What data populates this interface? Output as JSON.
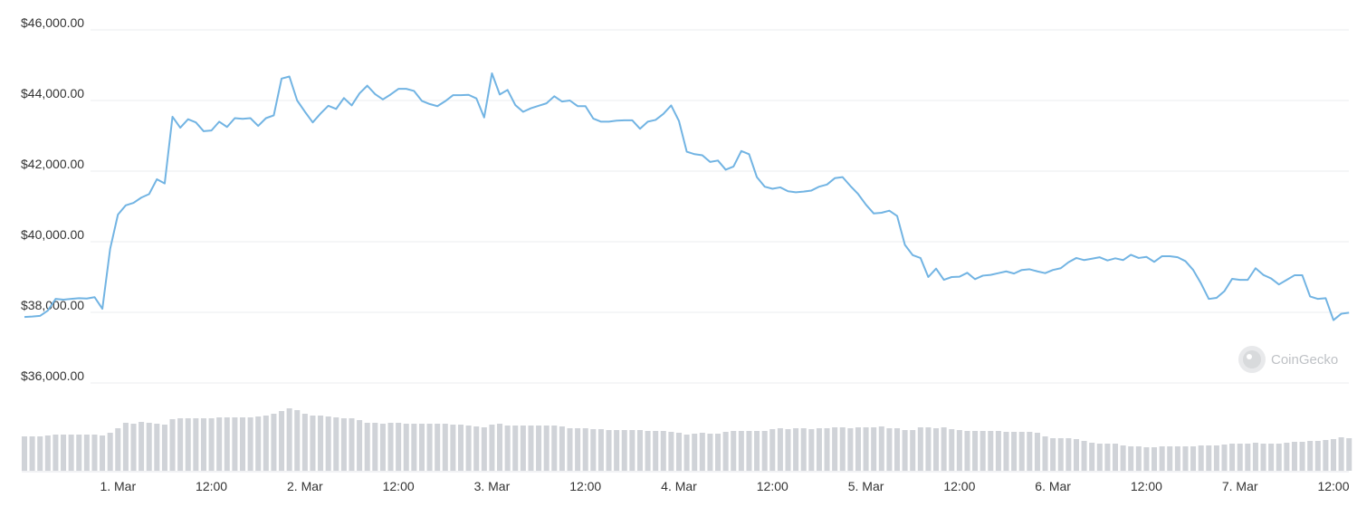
{
  "chart_data": {
    "type": "line",
    "categories": [
      null,
      null,
      null,
      null,
      null,
      null,
      null,
      null,
      null,
      null,
      null,
      null,
      "1. Mar",
      null,
      null,
      null,
      null,
      null,
      null,
      null,
      null,
      null,
      null,
      null,
      "12:00",
      null,
      null,
      null,
      null,
      null,
      null,
      null,
      null,
      null,
      null,
      null,
      "2. Mar",
      null,
      null,
      null,
      null,
      null,
      null,
      null,
      null,
      null,
      null,
      null,
      "12:00",
      null,
      null,
      null,
      null,
      null,
      null,
      null,
      null,
      null,
      null,
      null,
      "3. Mar",
      null,
      null,
      null,
      null,
      null,
      null,
      null,
      null,
      null,
      null,
      null,
      "12:00",
      null,
      null,
      null,
      null,
      null,
      null,
      null,
      null,
      null,
      null,
      null,
      "4. Mar",
      null,
      null,
      null,
      null,
      null,
      null,
      null,
      null,
      null,
      null,
      null,
      "12:00",
      null,
      null,
      null,
      null,
      null,
      null,
      null,
      null,
      null,
      null,
      null,
      "5. Mar",
      null,
      null,
      null,
      null,
      null,
      null,
      null,
      null,
      null,
      null,
      null,
      "12:00",
      null,
      null,
      null,
      null,
      null,
      null,
      null,
      null,
      null,
      null,
      null,
      "6. Mar",
      null,
      null,
      null,
      null,
      null,
      null,
      null,
      null,
      null,
      null,
      null,
      "12:00",
      null,
      null,
      null,
      null,
      null,
      null,
      null,
      null,
      null,
      null,
      null,
      "7. Mar",
      null,
      null,
      null,
      null,
      null,
      null,
      null,
      null,
      null,
      null,
      null,
      "12:00",
      null,
      null
    ],
    "series": [
      {
        "color": "#72b4e3",
        "values": [
          37870,
          37880,
          37900,
          38050,
          38380,
          38360,
          38380,
          38400,
          38390,
          38430,
          38100,
          39800,
          40770,
          41030,
          41100,
          41250,
          41350,
          41770,
          41650,
          43540,
          43230,
          43470,
          43380,
          43130,
          43150,
          43400,
          43250,
          43500,
          43480,
          43500,
          43280,
          43500,
          43580,
          44620,
          44680,
          44000,
          43680,
          43380,
          43630,
          43850,
          43760,
          44070,
          43860,
          44200,
          44420,
          44180,
          44030,
          44170,
          44330,
          44330,
          44270,
          43990,
          43900,
          43840,
          43980,
          44150,
          44150,
          44160,
          44060,
          43520,
          44770,
          44170,
          44300,
          43870,
          43680,
          43780,
          43850,
          43920,
          44120,
          43970,
          44000,
          43840,
          43840,
          43490,
          43400,
          43400,
          43430,
          43440,
          43440,
          43200,
          43400,
          43450,
          43620,
          43860,
          43420,
          42550,
          42480,
          42450,
          42260,
          42300,
          42040,
          42130,
          42570,
          42480,
          41830,
          41560,
          41500,
          41540,
          41430,
          41400,
          41420,
          41450,
          41560,
          41620,
          41800,
          41830,
          41580,
          41350,
          41050,
          40800,
          40820,
          40880,
          40730,
          39910,
          39620,
          39540,
          39000,
          39240,
          38920,
          39000,
          39010,
          39120,
          38940,
          39040,
          39060,
          39110,
          39160,
          39100,
          39200,
          39220,
          39160,
          39110,
          39200,
          39250,
          39420,
          39540,
          39480,
          39520,
          39560,
          39470,
          39530,
          39480,
          39630,
          39540,
          39570,
          39430,
          39590,
          39590,
          39560,
          39450,
          39200,
          38820,
          38380,
          38410,
          38600,
          38950,
          38920,
          38920,
          39250,
          39060,
          38960,
          38790,
          38920,
          39050,
          39050,
          38450,
          38380,
          38400,
          37780,
          37960,
          37990
        ]
      },
      {
        "type": "bar",
        "axis": "y2",
        "color": "#d0d3d8",
        "values": [
          38,
          38,
          38,
          39,
          40,
          40,
          40,
          40,
          40,
          40,
          39,
          42,
          47,
          53,
          52,
          54,
          53,
          52,
          51,
          57,
          58,
          58,
          58,
          58,
          58,
          59,
          59,
          59,
          59,
          59,
          60,
          61,
          63,
          66,
          69,
          67,
          63,
          61,
          61,
          60,
          59,
          58,
          58,
          56,
          53,
          53,
          52,
          53,
          53,
          52,
          52,
          52,
          52,
          52,
          52,
          51,
          51,
          50,
          49,
          48,
          51,
          52,
          50,
          50,
          50,
          50,
          50,
          50,
          50,
          49,
          47,
          47,
          47,
          46,
          46,
          45,
          45,
          45,
          45,
          45,
          44,
          44,
          44,
          43,
          42,
          40,
          41,
          42,
          41,
          41,
          43,
          44,
          44,
          44,
          44,
          44,
          46,
          47,
          46,
          47,
          47,
          46,
          47,
          47,
          48,
          48,
          47,
          48,
          48,
          48,
          49,
          47,
          47,
          45,
          45,
          48,
          48,
          47,
          48,
          46,
          45,
          44,
          44,
          44,
          44,
          44,
          43,
          43,
          43,
          43,
          42,
          38,
          36,
          36,
          36,
          35,
          33,
          31,
          30,
          30,
          30,
          28,
          27,
          27,
          26,
          26,
          27,
          27,
          27,
          27,
          27,
          28,
          28,
          28,
          29,
          30,
          30,
          30,
          31,
          30,
          30,
          30,
          31,
          32,
          32,
          33,
          33,
          34,
          35,
          37,
          36
        ]
      }
    ],
    "ylim": [
      36000,
      46000
    ],
    "yticks": [
      {
        "value": 36000,
        "label": "$36,000.00"
      },
      {
        "value": 38000,
        "label": "$38,000.00"
      },
      {
        "value": 40000,
        "label": "$40,000.00"
      },
      {
        "value": 42000,
        "label": "$42,000.00"
      },
      {
        "value": 44000,
        "label": "$44,000.00"
      },
      {
        "value": 46000,
        "label": "$46,000.00"
      }
    ],
    "y2lim": [
      0,
      100
    ],
    "grid": true,
    "watermark": "CoinGecko"
  }
}
